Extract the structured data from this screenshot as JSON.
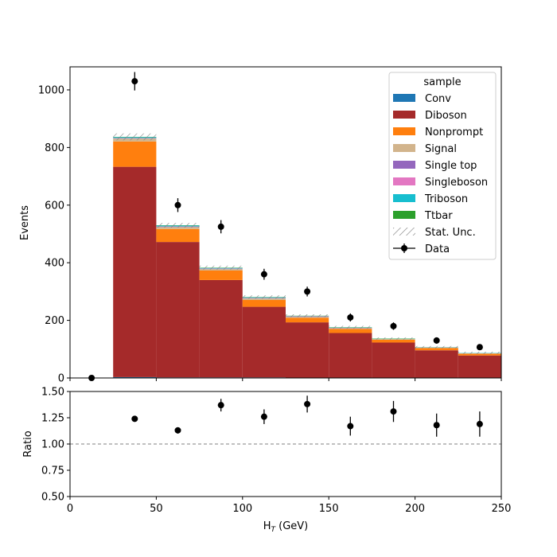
{
  "chart_data": [
    {
      "type": "bar",
      "stacked": true,
      "histogram": true,
      "ylabel": "Events",
      "ylim": [
        0,
        1080
      ],
      "xlim": [
        0,
        250
      ],
      "bin_edges": [
        0,
        25,
        50,
        75,
        100,
        125,
        150,
        175,
        200,
        225,
        250
      ],
      "yticks": [
        0,
        200,
        400,
        600,
        800,
        1000
      ],
      "series": [
        {
          "name": "Conv",
          "color": "#1f77b4",
          "values": [
            0,
            3,
            2,
            2,
            2,
            1,
            1,
            1,
            1,
            0
          ]
        },
        {
          "name": "Diboson",
          "color": "#a52a2a",
          "values": [
            0,
            730,
            470,
            338,
            245,
            192,
            155,
            122,
            95,
            78
          ]
        },
        {
          "name": "Nonprompt",
          "color": "#ff7f0e",
          "values": [
            0,
            88,
            45,
            33,
            24,
            16,
            14,
            10,
            8,
            6
          ]
        },
        {
          "name": "Signal",
          "color": "#d2b48c",
          "values": [
            0,
            10,
            7,
            5,
            5,
            3,
            3,
            2,
            2,
            2
          ]
        },
        {
          "name": "Single top",
          "color": "#9467bd",
          "values": [
            0,
            1,
            1,
            1,
            1,
            1,
            1,
            0,
            0,
            0
          ]
        },
        {
          "name": "Singleboson",
          "color": "#e377c2",
          "values": [
            0,
            1,
            1,
            1,
            1,
            1,
            0,
            0,
            0,
            0
          ]
        },
        {
          "name": "Triboson",
          "color": "#17becf",
          "values": [
            0,
            3,
            3,
            2,
            2,
            1,
            1,
            1,
            1,
            1
          ]
        },
        {
          "name": "Ttbar",
          "color": "#2ca02c",
          "values": [
            0,
            1,
            1,
            1,
            1,
            1,
            1,
            1,
            0,
            0
          ]
        }
      ],
      "stat_unc": {
        "name": "Stat. Unc.",
        "values": [
          0,
          12,
          8,
          7,
          6,
          5,
          5,
          4,
          4,
          4
        ]
      },
      "data": {
        "name": "Data",
        "x": [
          12.5,
          37.5,
          62.5,
          87.5,
          112.5,
          137.5,
          162.5,
          187.5,
          212.5,
          237.5
        ],
        "y": [
          0,
          1030,
          600,
          525,
          360,
          300,
          210,
          180,
          130,
          107
        ],
        "yerr": [
          0,
          32,
          24,
          23,
          19,
          17,
          14,
          13,
          11,
          10
        ]
      },
      "legend": {
        "title": "sample",
        "placement": "top-right"
      }
    },
    {
      "type": "scatter",
      "xlabel": "H_T (GeV)",
      "xlabel_main": "H",
      "xlabel_sub": "T",
      "xlabel_unit": " (GeV)",
      "ylabel": "Ratio",
      "ylim": [
        0.5,
        1.5
      ],
      "xlim": [
        0,
        250
      ],
      "yticks": [
        "0.50",
        "0.75",
        "1.00",
        "1.25",
        "1.50"
      ],
      "xticks": [
        "0",
        "50",
        "100",
        "150",
        "200",
        "250"
      ],
      "reference_line": 1.0,
      "x": [
        37.5,
        62.5,
        87.5,
        112.5,
        137.5,
        162.5,
        187.5,
        212.5,
        237.5
      ],
      "y": [
        1.24,
        1.13,
        1.37,
        1.26,
        1.38,
        1.17,
        1.31,
        1.18,
        1.19
      ],
      "yerr": [
        0.02,
        0.03,
        0.06,
        0.07,
        0.08,
        0.09,
        0.1,
        0.11,
        0.12
      ]
    }
  ]
}
